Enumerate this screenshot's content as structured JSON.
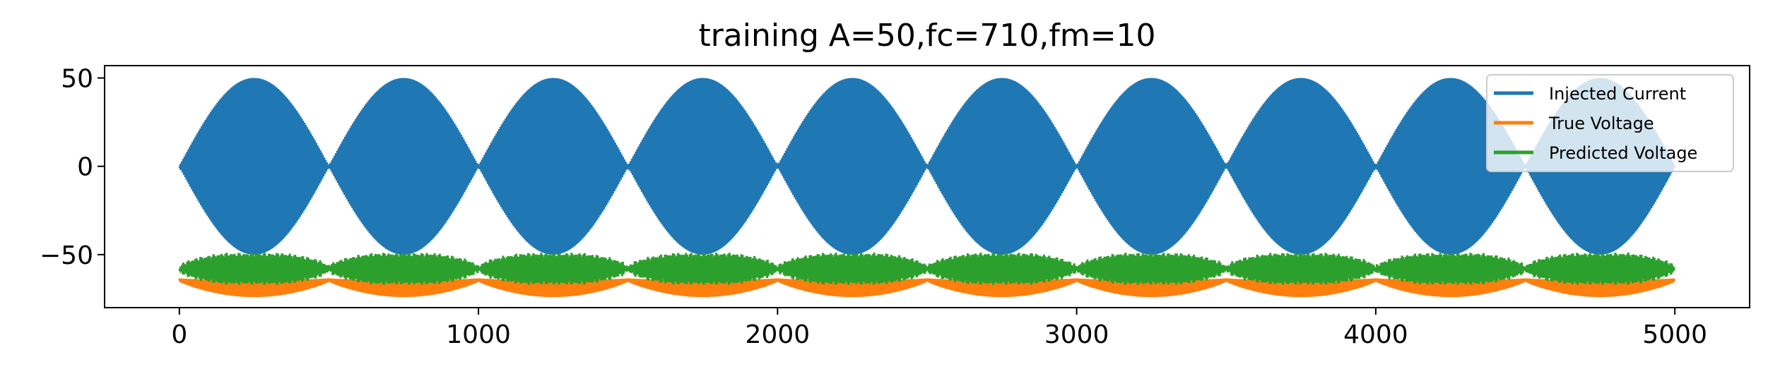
{
  "chart_data": {
    "type": "line",
    "title": "training A=50,fc=710,fm=10",
    "xlabel": "",
    "ylabel": "",
    "xlim": [
      -250,
      5250
    ],
    "ylim": [
      -80,
      57
    ],
    "xticks": [
      0,
      1000,
      2000,
      3000,
      4000,
      5000
    ],
    "xtick_labels": [
      "0",
      "1000",
      "2000",
      "3000",
      "4000",
      "5000"
    ],
    "yticks": [
      50,
      0,
      -50
    ],
    "ytick_labels": [
      "50",
      "0",
      "−50"
    ],
    "grid": false,
    "legend_position": "top-right",
    "x_range": [
      0,
      5000
    ],
    "series": [
      {
        "name": "Injected Current",
        "color": "#1f77b4",
        "description_values": {
          "amplitude": 50,
          "carrier_frequency": 710,
          "modulation_frequency": 10,
          "envelope_period_samples": 500,
          "min": -50,
          "max": 50,
          "center": 0
        }
      },
      {
        "name": "True Voltage",
        "color": "#ff7f0e",
        "description_values": {
          "upper_bound": -64,
          "lower_bound_min": -74,
          "node_value": -65,
          "envelope_period_samples": 500
        }
      },
      {
        "name": "Predicted Voltage",
        "color": "#2ca02c",
        "description_values": {
          "upper_bound_max": -49,
          "lower_bound_min": -67,
          "node_value": -58,
          "envelope_period_samples": 500
        }
      }
    ]
  }
}
